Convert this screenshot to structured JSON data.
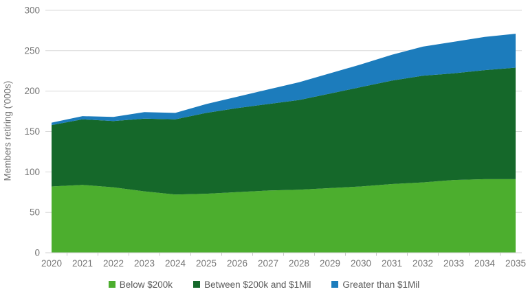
{
  "chart_data": {
    "type": "area",
    "stacked": true,
    "title": "",
    "xlabel": "",
    "ylabel": "Members retiring ('000s)",
    "x": [
      "2020",
      "2021",
      "2022",
      "2023",
      "2024",
      "2025",
      "2026",
      "2027",
      "2028",
      "2029",
      "2030",
      "2031",
      "2032",
      "2033",
      "2034",
      "2035"
    ],
    "series": [
      {
        "name": "Below $200k",
        "color": "#4CAE2E",
        "values": [
          82,
          84,
          81,
          76,
          72,
          73,
          75,
          77,
          78,
          80,
          82,
          85,
          87,
          90,
          91,
          91
        ]
      },
      {
        "name": "Between $200k and $1Mil",
        "color": "#15682A",
        "values": [
          76,
          81,
          82,
          90,
          93,
          100,
          104,
          107,
          111,
          117,
          123,
          128,
          132,
          132,
          135,
          138
        ]
      },
      {
        "name": "Greater than $1Mil",
        "color": "#1C7CBC",
        "values": [
          3,
          4,
          5,
          8,
          8,
          11,
          14,
          18,
          22,
          25,
          28,
          32,
          36,
          39,
          41,
          42
        ]
      }
    ],
    "ylim": [
      0,
      300
    ],
    "yticks": [
      0,
      50,
      100,
      150,
      200,
      250,
      300
    ],
    "grid": true,
    "legend_position": "bottom"
  },
  "colors": {
    "gridline": "#D9D9D9",
    "axis_line": "#D0D0D0",
    "tick_mark": "#C9C9C9",
    "axis_text": "#757575",
    "legend_text": "#595959"
  }
}
